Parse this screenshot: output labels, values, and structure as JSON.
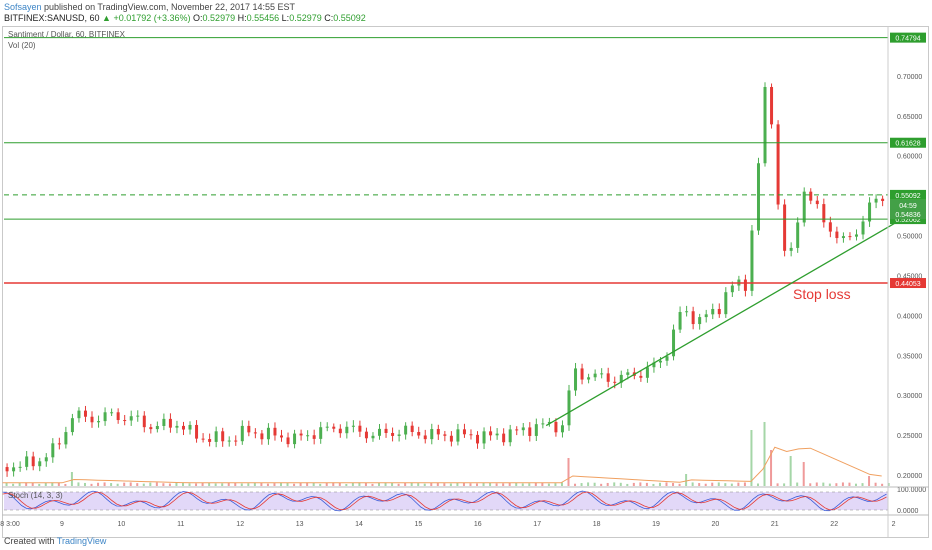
{
  "header": {
    "author": "Sofsayen",
    "published_text": " published on TradingView.com, November 22, 2017 14:55 EST",
    "symbol": "BITFINEX:SANUSD, 60",
    "change": "▲ +0.01792 (+3.36%)",
    "o_label": "O:",
    "o_value": "0.52979",
    "h_label": "H:",
    "h_value": "0.55456",
    "l_label": "L:",
    "l_value": "0.52979",
    "c_label": "C:",
    "c_value": "0.55092"
  },
  "pane_labels": {
    "main": "Santiment / Dollar, 60, BITFINEX",
    "volume": "Vol (20)",
    "stoch": "Stoch (14, 3, 3)"
  },
  "footer": {
    "created_with": "Created with",
    "brand": "TradingView"
  },
  "colors": {
    "up": "#4caf50",
    "down": "#e53935",
    "resistance": "#2e9e2e",
    "stop": "#e53935",
    "trendline": "#2e9e2e",
    "volume": "#a5d6a7",
    "volume_down": "#ef9a9a",
    "vol_ma": "#f0a060",
    "stoch_k": "#3b5bd9",
    "stoch_d": "#e53935",
    "stoch_band": "#d6c8f5"
  },
  "chart_data": {
    "type": "candlestick",
    "title": "Santiment / Dollar, 60, BITFINEX",
    "x_ticks": [
      "8 3:00",
      "9",
      "10",
      "11",
      "12",
      "13",
      "14",
      "15",
      "16",
      "17",
      "18",
      "19",
      "20",
      "21",
      "22",
      "2"
    ],
    "y_ticks": [
      "0.70000",
      "0.65000",
      "0.60000",
      "0.50000",
      "0.45000",
      "0.40000",
      "0.35000",
      "0.30000",
      "0.25000",
      "0.20000"
    ],
    "ylim": [
      0.185,
      0.76
    ],
    "horizontal_levels": [
      {
        "value": 0.74794,
        "label": "0.74794",
        "kind": "resistance"
      },
      {
        "value": 0.61628,
        "label": "0.61628",
        "kind": "resistance"
      },
      {
        "value": 0.55092,
        "label": "0.55092",
        "kind": "current-price"
      },
      {
        "value": 0.52062,
        "label": "0.52062",
        "kind": "support"
      },
      {
        "value": 0.44053,
        "label": "0.44053",
        "kind": "stop-loss"
      }
    ],
    "price_badges": [
      "04:59",
      "0.54836"
    ],
    "annotation": "Stop loss",
    "trendline": {
      "from": [
        "17",
        0.262
      ],
      "to": [
        "22",
        0.515
      ]
    },
    "price_path": [
      {
        "x": 8.0,
        "y": 0.21
      },
      {
        "x": 8.5,
        "y": 0.215
      },
      {
        "x": 8.9,
        "y": 0.235
      },
      {
        "x": 9.15,
        "y": 0.275
      },
      {
        "x": 9.5,
        "y": 0.27
      },
      {
        "x": 9.8,
        "y": 0.275
      },
      {
        "x": 10.2,
        "y": 0.27
      },
      {
        "x": 10.5,
        "y": 0.26
      },
      {
        "x": 10.9,
        "y": 0.265
      },
      {
        "x": 11.2,
        "y": 0.25
      },
      {
        "x": 11.5,
        "y": 0.245
      },
      {
        "x": 11.8,
        "y": 0.245
      },
      {
        "x": 12.1,
        "y": 0.255
      },
      {
        "x": 12.5,
        "y": 0.25
      },
      {
        "x": 12.9,
        "y": 0.245
      },
      {
        "x": 13.3,
        "y": 0.255
      },
      {
        "x": 13.7,
        "y": 0.26
      },
      {
        "x": 14.2,
        "y": 0.25
      },
      {
        "x": 14.7,
        "y": 0.255
      },
      {
        "x": 15.2,
        "y": 0.25
      },
      {
        "x": 15.7,
        "y": 0.25
      },
      {
        "x": 16.2,
        "y": 0.248
      },
      {
        "x": 16.7,
        "y": 0.255
      },
      {
        "x": 17.0,
        "y": 0.262
      },
      {
        "x": 17.45,
        "y": 0.262
      },
      {
        "x": 17.55,
        "y": 0.33
      },
      {
        "x": 17.8,
        "y": 0.325
      },
      {
        "x": 18.3,
        "y": 0.32
      },
      {
        "x": 18.8,
        "y": 0.33
      },
      {
        "x": 19.1,
        "y": 0.345
      },
      {
        "x": 19.4,
        "y": 0.405
      },
      {
        "x": 19.7,
        "y": 0.395
      },
      {
        "x": 20.0,
        "y": 0.405
      },
      {
        "x": 20.2,
        "y": 0.435
      },
      {
        "x": 20.5,
        "y": 0.44
      },
      {
        "x": 20.65,
        "y": 0.55
      },
      {
        "x": 20.85,
        "y": 0.71
      },
      {
        "x": 20.95,
        "y": 0.62
      },
      {
        "x": 21.05,
        "y": 0.52
      },
      {
        "x": 21.2,
        "y": 0.455
      },
      {
        "x": 21.45,
        "y": 0.56
      },
      {
        "x": 21.7,
        "y": 0.53
      },
      {
        "x": 21.9,
        "y": 0.51
      },
      {
        "x": 22.1,
        "y": 0.49
      },
      {
        "x": 22.4,
        "y": 0.51
      },
      {
        "x": 22.6,
        "y": 0.54
      },
      {
        "x": 22.8,
        "y": 0.55
      }
    ],
    "volume_spikes": [
      {
        "x": 9.1,
        "v": 0.35
      },
      {
        "x": 17.55,
        "v": 0.7
      },
      {
        "x": 19.5,
        "v": 0.3
      },
      {
        "x": 20.6,
        "v": 1.4
      },
      {
        "x": 20.85,
        "v": 1.6
      },
      {
        "x": 20.95,
        "v": 0.9
      },
      {
        "x": 21.2,
        "v": 0.75
      },
      {
        "x": 21.45,
        "v": 0.6
      },
      {
        "x": 22.6,
        "v": 0.25
      }
    ],
    "stoch_levels": [
      "100.0000",
      "0.0000"
    ]
  }
}
